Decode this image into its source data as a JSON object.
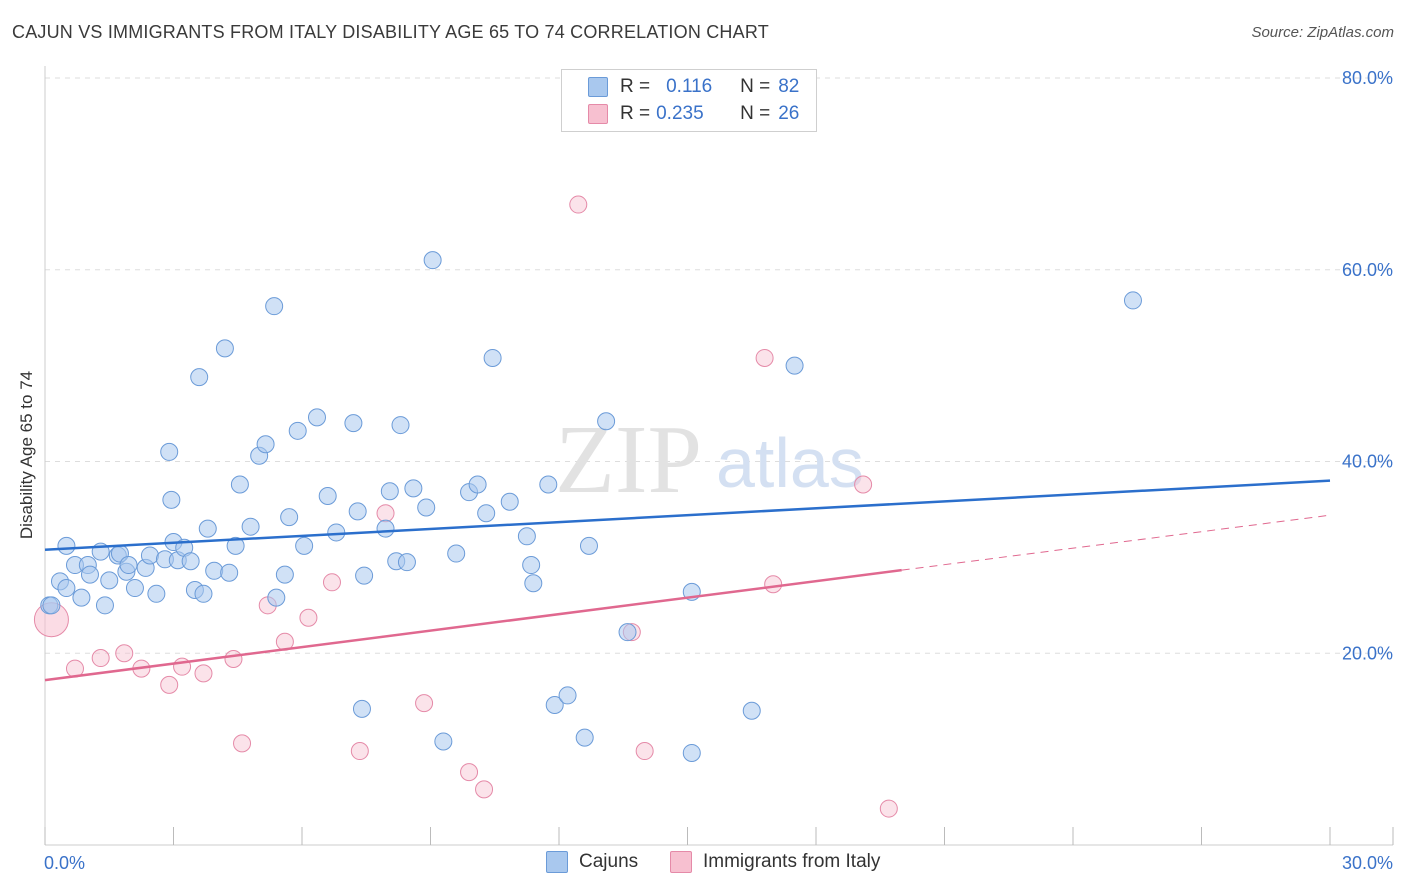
{
  "header": {
    "title": "CAJUN VS IMMIGRANTS FROM ITALY DISABILITY AGE 65 TO 74 CORRELATION CHART",
    "source": "Source: ZipAtlas.com"
  },
  "watermark": {
    "zip": "ZIP",
    "atlas": "atlas"
  },
  "legend_top": {
    "rows": [
      {
        "r_label": "R =",
        "r_value": "0.116",
        "n_label": "N =",
        "n_value": "82"
      },
      {
        "r_label": "R =",
        "r_value": "0.235",
        "n_label": "N =",
        "n_value": "26"
      }
    ]
  },
  "legend_bottom": {
    "items": [
      "Cajuns",
      "Immigrants from Italy"
    ]
  },
  "colors": {
    "blue_fill": "#a9c8ee",
    "blue_stroke": "#6b9bd8",
    "blue_line": "#2b6fcc",
    "pink_fill": "#f7c0d0",
    "pink_stroke": "#e58aa8",
    "pink_line": "#e0688f",
    "grid": "#dddddd",
    "axis_text": "#3a72c9"
  },
  "chart_data": {
    "type": "scatter",
    "title": "CAJUN VS IMMIGRANTS FROM ITALY DISABILITY AGE 65 TO 74 CORRELATION CHART",
    "xlabel": "",
    "ylabel": "Disability Age 65 to 74",
    "xlim": [
      0,
      30
    ],
    "ylim": [
      0,
      80
    ],
    "x_tick_labels": [
      "0.0%",
      "30.0%"
    ],
    "y_tick_labels": [
      "20.0%",
      "40.0%",
      "60.0%",
      "80.0%"
    ],
    "y_ticks": [
      20,
      40,
      60,
      80
    ],
    "grid": true,
    "legend_position": "top-center",
    "series": [
      {
        "name": "Cajuns",
        "r": 0.116,
        "n": 82,
        "trend": {
          "x": [
            0,
            30
          ],
          "y": [
            30.8,
            38.0
          ],
          "dashed_from": null
        },
        "points": [
          [
            0.1,
            25.0
          ],
          [
            0.35,
            27.5
          ],
          [
            0.5,
            26.8
          ],
          [
            0.5,
            31.2
          ],
          [
            0.7,
            29.2
          ],
          [
            0.85,
            25.8
          ],
          [
            1.0,
            29.2
          ],
          [
            1.05,
            28.2
          ],
          [
            1.3,
            30.6
          ],
          [
            1.4,
            25.0
          ],
          [
            1.5,
            27.6
          ],
          [
            1.7,
            30.2
          ],
          [
            1.75,
            30.4
          ],
          [
            1.9,
            28.5
          ],
          [
            1.95,
            29.2
          ],
          [
            2.1,
            26.8
          ],
          [
            2.35,
            28.9
          ],
          [
            2.45,
            30.2
          ],
          [
            2.6,
            26.2
          ],
          [
            2.8,
            29.8
          ],
          [
            2.9,
            41.0
          ],
          [
            2.95,
            36.0
          ],
          [
            3.0,
            31.6
          ],
          [
            3.1,
            29.7
          ],
          [
            3.25,
            31.0
          ],
          [
            3.4,
            29.6
          ],
          [
            3.5,
            26.6
          ],
          [
            3.6,
            48.8
          ],
          [
            3.7,
            26.2
          ],
          [
            3.8,
            33.0
          ],
          [
            3.95,
            28.6
          ],
          [
            4.2,
            51.8
          ],
          [
            4.3,
            28.4
          ],
          [
            4.45,
            31.2
          ],
          [
            4.55,
            37.6
          ],
          [
            4.8,
            33.2
          ],
          [
            5.0,
            40.6
          ],
          [
            5.15,
            41.8
          ],
          [
            5.35,
            56.2
          ],
          [
            5.4,
            25.8
          ],
          [
            5.6,
            28.2
          ],
          [
            5.7,
            34.2
          ],
          [
            5.9,
            43.2
          ],
          [
            6.05,
            31.2
          ],
          [
            6.35,
            44.6
          ],
          [
            6.6,
            36.4
          ],
          [
            6.8,
            32.6
          ],
          [
            7.2,
            44.0
          ],
          [
            7.3,
            34.8
          ],
          [
            7.45,
            28.1
          ],
          [
            7.4,
            14.2
          ],
          [
            7.95,
            33.0
          ],
          [
            8.05,
            36.9
          ],
          [
            8.2,
            29.6
          ],
          [
            8.3,
            43.8
          ],
          [
            8.45,
            29.5
          ],
          [
            8.6,
            37.2
          ],
          [
            8.9,
            35.2
          ],
          [
            9.05,
            61.0
          ],
          [
            9.3,
            10.8
          ],
          [
            9.6,
            30.4
          ],
          [
            9.9,
            36.8
          ],
          [
            10.1,
            37.6
          ],
          [
            10.3,
            34.6
          ],
          [
            10.45,
            50.8
          ],
          [
            10.85,
            35.8
          ],
          [
            11.25,
            32.2
          ],
          [
            11.35,
            29.2
          ],
          [
            11.4,
            27.3
          ],
          [
            11.75,
            37.6
          ],
          [
            11.9,
            14.6
          ],
          [
            12.2,
            15.6
          ],
          [
            12.6,
            11.2
          ],
          [
            12.7,
            31.2
          ],
          [
            13.1,
            44.2
          ],
          [
            13.6,
            22.2
          ],
          [
            15.1,
            26.4
          ],
          [
            15.1,
            9.6
          ],
          [
            16.5,
            14.0
          ],
          [
            17.5,
            50.0
          ],
          [
            25.4,
            56.8
          ],
          [
            0.15,
            25.0
          ]
        ]
      },
      {
        "name": "Immigrants from Italy",
        "r": 0.235,
        "n": 26,
        "trend": {
          "x": [
            0,
            30
          ],
          "y": [
            17.2,
            34.4
          ],
          "dashed_from": 20.0
        },
        "points": [
          [
            0.15,
            23.5
          ],
          [
            0.7,
            18.4
          ],
          [
            1.3,
            19.5
          ],
          [
            1.85,
            20.0
          ],
          [
            2.25,
            18.4
          ],
          [
            2.9,
            16.7
          ],
          [
            3.2,
            18.6
          ],
          [
            3.7,
            17.9
          ],
          [
            4.4,
            19.4
          ],
          [
            4.6,
            10.6
          ],
          [
            5.2,
            25.0
          ],
          [
            5.6,
            21.2
          ],
          [
            6.15,
            23.7
          ],
          [
            6.7,
            27.4
          ],
          [
            7.35,
            9.8
          ],
          [
            7.95,
            34.6
          ],
          [
            8.85,
            14.8
          ],
          [
            9.9,
            7.6
          ],
          [
            10.25,
            5.8
          ],
          [
            12.45,
            66.8
          ],
          [
            13.7,
            22.2
          ],
          [
            14.0,
            9.8
          ],
          [
            16.8,
            50.8
          ],
          [
            17.0,
            27.2
          ],
          [
            19.1,
            37.6
          ],
          [
            19.7,
            3.8
          ]
        ]
      }
    ]
  }
}
